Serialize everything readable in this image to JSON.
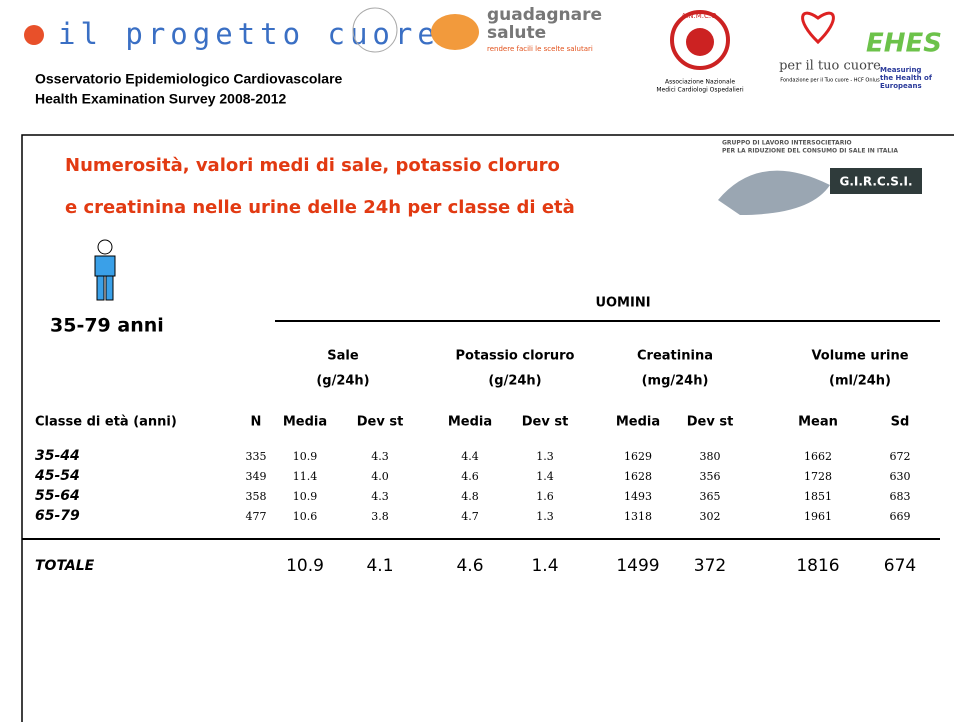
{
  "header": {
    "logo_text": "il progetto cuore",
    "org_lines": [
      "Osservatorio Epidemiologico Cardiovascolare",
      "Health Examination Survey 2008-2012"
    ],
    "guadagnare": [
      "guadagnare",
      "salute",
      "rendere facili le scelte salutari"
    ],
    "anmco": [
      "A.N.M.C.O.",
      "Associazione Nazionale",
      "Medici Cardiologi Ospedalieri"
    ],
    "tuo_cuore": [
      "per il tuo cuore",
      "Fondazione per il Tuo cuore - HCF Onlus"
    ],
    "ehes": [
      "EHES",
      "Measuring",
      "the Health of",
      "Europeans"
    ]
  },
  "title": [
    "Numerosità, valori medi di sale, potassio cloruro",
    "e creatinina nelle urine delle 24h per classe di età"
  ],
  "gircsi": {
    "lines": [
      "GRUPPO DI LAVORO INTERSOCIETARIO",
      "PER LA RIDUZIONE DEL CONSUMO DI SALE IN ITALIA"
    ],
    "badge": "G.I.R.C.S.I."
  },
  "age_range": "35-79 anni",
  "table": {
    "group": "UOMINI",
    "column_groups": [
      {
        "name": "Sale",
        "unit": "(g/24h)"
      },
      {
        "name": "Potassio cloruro",
        "unit": "(g/24h)"
      },
      {
        "name": "Creatinina",
        "unit": "(mg/24h)"
      },
      {
        "name": "Volume urine",
        "unit": "(ml/24h)"
      }
    ],
    "columns": [
      "Classe di età (anni)",
      "N",
      "Media",
      "Dev st",
      "Media",
      "Dev st",
      "Media",
      "Dev st",
      "Mean",
      "Sd"
    ],
    "rows": [
      [
        "35-44",
        "335",
        "10.9",
        "4.3",
        "4.4",
        "1.3",
        "1629",
        "380",
        "1662",
        "672"
      ],
      [
        "45-54",
        "349",
        "11.4",
        "4.0",
        "4.6",
        "1.4",
        "1628",
        "356",
        "1728",
        "630"
      ],
      [
        "55-64",
        "358",
        "10.9",
        "4.3",
        "4.8",
        "1.6",
        "1493",
        "365",
        "1851",
        "683"
      ],
      [
        "65-79",
        "477",
        "10.6",
        "3.8",
        "4.7",
        "1.3",
        "1318",
        "302",
        "1961",
        "669"
      ]
    ],
    "total": {
      "label": "TOTALE",
      "values": [
        "10.9",
        "4.1",
        "4.6",
        "1.4",
        "1499",
        "372",
        "1816",
        "674"
      ]
    }
  }
}
